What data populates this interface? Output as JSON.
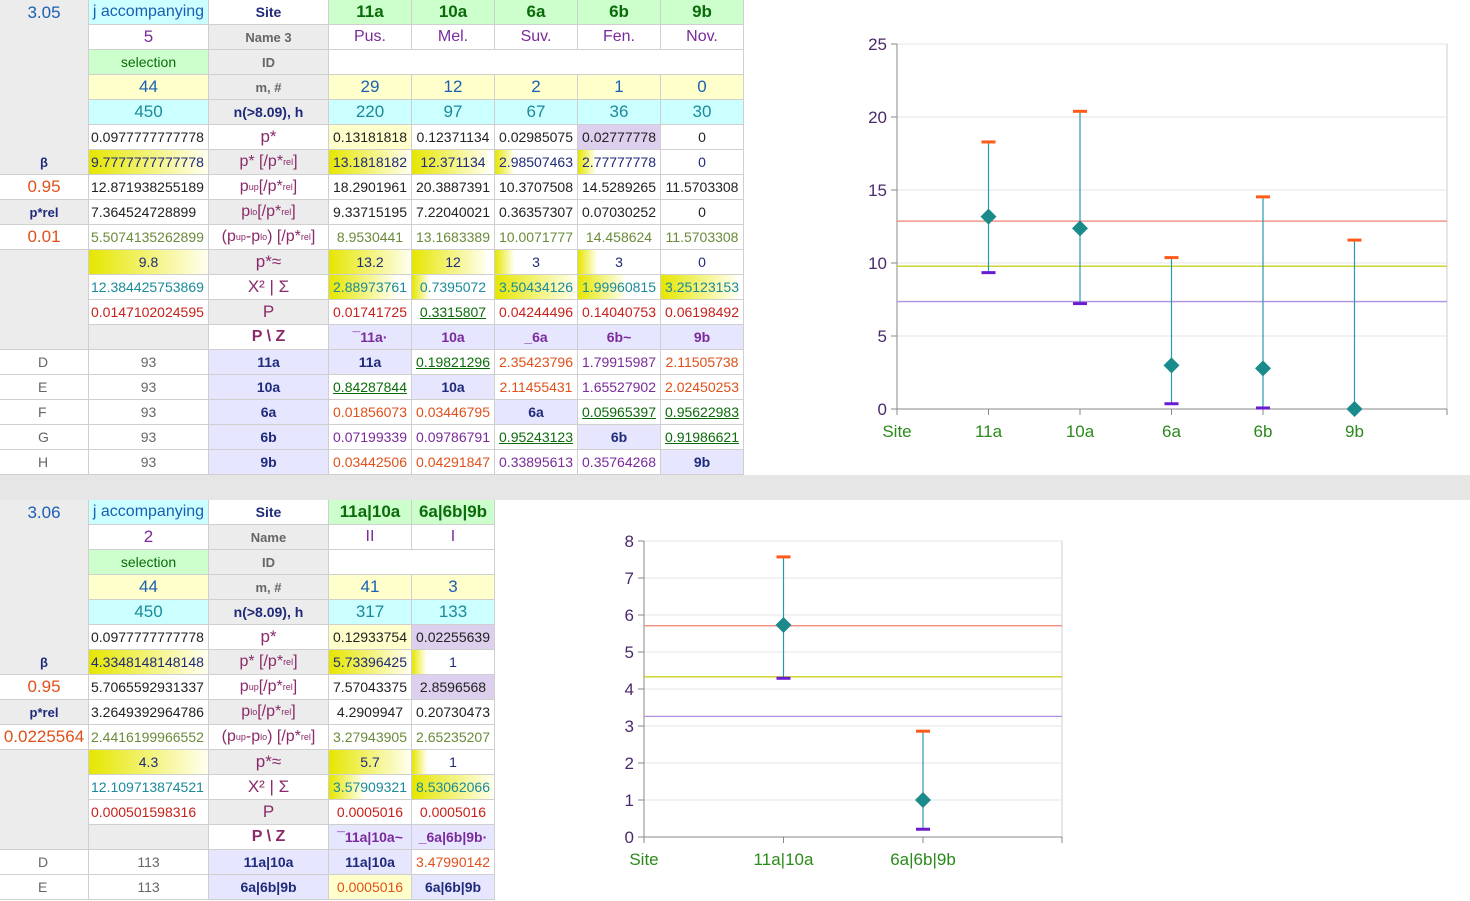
{
  "sheet1": {
    "section_id": "3.05",
    "hdr_label": "j accompanying",
    "hdr_site": "Site",
    "hdr_name": "Name 3",
    "hdr_id": "ID",
    "hdr_m": "m, #",
    "hdr_n": "n(>8.09), h",
    "selection_label": "selection",
    "count": "5",
    "m_total": "44",
    "n_total": "450",
    "sites": [
      "11a",
      "10a",
      "6a",
      "6b",
      "9b"
    ],
    "names": [
      "Pus.",
      "Mel.",
      "Suv.",
      "Fen.",
      "Nov."
    ],
    "m_vals": [
      "29",
      "12",
      "2",
      "1",
      "0"
    ],
    "n_vals": [
      "220",
      "97",
      "67",
      "36",
      "30"
    ],
    "left_labels": [
      "β",
      "0.95",
      "p*rel",
      "0.01"
    ],
    "rows": [
      {
        "label": "p*",
        "left": "0.0977777777778",
        "vals": [
          "0.13181818",
          "0.12371134",
          "0.02985075",
          "0.02777778",
          "0"
        ]
      },
      {
        "label": "p* [/p*rel]",
        "left": "9.7777777777778",
        "vals": [
          "13.1818182",
          "12.371134",
          "2.98507463",
          "2.77777778",
          "0"
        ]
      },
      {
        "label": "pup [/p*rel]",
        "left": "12.871938255189",
        "vals": [
          "18.2901961",
          "20.3887391",
          "10.3707508",
          "14.5289265",
          "11.5703308"
        ]
      },
      {
        "label": "plo [/p*rel]",
        "left": "7.364524728899",
        "vals": [
          "9.33715195",
          "7.22040021",
          "0.36357307",
          "0.07030252",
          "0"
        ]
      },
      {
        "label": "(pup-plo) [/p*rel]",
        "left": "5.5074135262899",
        "vals": [
          "8.9530441",
          "13.1683389",
          "10.0071777",
          "14.458624",
          "11.5703308"
        ]
      },
      {
        "label": "p*≈",
        "left": "9.8",
        "vals": [
          "13.2",
          "12",
          "3",
          "3",
          "0"
        ]
      },
      {
        "label": "X² | Σ",
        "left": "12.384425753869",
        "vals": [
          "2.88973761",
          "0.7395072",
          "3.50434126",
          "1.99960815",
          "3.25123153"
        ]
      },
      {
        "label": "P",
        "left": "0.0147102024595",
        "vals": [
          "0.01741725",
          "0.3315807",
          "0.04244496",
          "0.14040753",
          "0.06198492"
        ]
      },
      {
        "label": "P \\ Z",
        "left": "",
        "vals": [
          "¯11a·",
          "10a",
          "_6a",
          "6b~",
          "9b"
        ]
      }
    ],
    "matrix_rows": [
      {
        "row": "D",
        "n": "93",
        "site": "11a",
        "vals": [
          "11a",
          "0.19821296",
          "2.35423796",
          "1.79915987",
          "2.11505738"
        ]
      },
      {
        "row": "E",
        "n": "93",
        "site": "10a",
        "vals": [
          "0.84287844",
          "10a",
          "2.11455431",
          "1.65527902",
          "2.02450253"
        ]
      },
      {
        "row": "F",
        "n": "93",
        "site": "6a",
        "vals": [
          "0.01856073",
          "0.03446795",
          "6a",
          "0.05965397",
          "0.95622983"
        ]
      },
      {
        "row": "G",
        "n": "93",
        "site": "6b",
        "vals": [
          "0.07199339",
          "0.09786791",
          "0.95243123",
          "6b",
          "0.91986621"
        ]
      },
      {
        "row": "H",
        "n": "93",
        "site": "9b",
        "vals": [
          "0.03442506",
          "0.04291847",
          "0.33895613",
          "0.35764268",
          "9b"
        ]
      }
    ]
  },
  "sheet2": {
    "section_id": "3.06",
    "hdr_label": "j accompanying",
    "hdr_site": "Site",
    "hdr_name": "Name",
    "hdr_id": "ID",
    "hdr_m": "m, #",
    "hdr_n": "n(>8.09), h",
    "selection_label": "selection",
    "count": "2",
    "m_total": "44",
    "n_total": "450",
    "sites": [
      "11a|10a",
      "6a|6b|9b"
    ],
    "names": [
      "II",
      "I"
    ],
    "m_vals": [
      "41",
      "3"
    ],
    "n_vals": [
      "317",
      "133"
    ],
    "left_labels": [
      "β",
      "0.95",
      "p*rel",
      "0.0225564"
    ],
    "rows": [
      {
        "label": "p*",
        "left": "0.0977777777778",
        "vals": [
          "0.12933754",
          "0.02255639"
        ]
      },
      {
        "label": "p* [/p*rel]",
        "left": "4.3348148148148",
        "vals": [
          "5.73396425",
          "1"
        ]
      },
      {
        "label": "pup [/p*rel]",
        "left": "5.7065592931337",
        "vals": [
          "7.57043375",
          "2.8596568"
        ]
      },
      {
        "label": "plo [/p*rel]",
        "left": "3.2649392964786",
        "vals": [
          "4.2909947",
          "0.20730473"
        ]
      },
      {
        "label": "(pup-plo) [/p*rel]",
        "left": "2.4416199966552",
        "vals": [
          "3.27943905",
          "2.65235207"
        ]
      },
      {
        "label": "p*≈",
        "left": "4.3",
        "vals": [
          "5.7",
          "1"
        ]
      },
      {
        "label": "X² | Σ",
        "left": "12.109713874521",
        "vals": [
          "3.57909321",
          "8.53062066"
        ]
      },
      {
        "label": "P",
        "left": "0.000501598316",
        "vals": [
          "0.0005016",
          "0.0005016"
        ]
      },
      {
        "label": "P \\ Z",
        "left": "",
        "vals": [
          "¯11a|10a~",
          "_6a|6b|9b·"
        ]
      }
    ],
    "matrix_rows": [
      {
        "row": "D",
        "n": "113",
        "site": "11a|10a",
        "vals": [
          "11a|10a",
          "3.47990142"
        ]
      },
      {
        "row": "E",
        "n": "113",
        "site": "6a|6b|9b",
        "vals": [
          "0.0005016",
          "6a|6b|9b"
        ]
      }
    ]
  },
  "chart_data": [
    {
      "type": "scatter",
      "categories": [
        "11a",
        "10a",
        "6a",
        "6b",
        "9b"
      ],
      "x_axis_first_label": "Site",
      "series": [
        {
          "values": [
            13.18,
            12.37,
            2.99,
            2.78,
            0
          ]
        },
        {
          "values": [
            18.29,
            20.39,
            10.37,
            14.53,
            11.57
          ]
        },
        {
          "values": [
            9.34,
            7.22,
            0.36,
            0.07,
            0
          ]
        }
      ],
      "reference_lines": [
        12.87,
        9.78,
        7.36
      ],
      "ylim": [
        0,
        25
      ],
      "yticks": [
        "0",
        "5",
        "10",
        "15",
        "20",
        "25"
      ],
      "grid": true,
      "colors": {
        "point": "#1a8a8a",
        "upper": "#ff5a1a",
        "lower": "#6a1ad0",
        "line_red": "#f08070",
        "line_yellow": "#c8d020",
        "line_purple": "#b090e0"
      }
    },
    {
      "type": "scatter",
      "categories": [
        "11a|10a",
        "6a|6b|9b"
      ],
      "x_axis_first_label": "Site",
      "series": [
        {
          "values": [
            5.73,
            1
          ]
        },
        {
          "values": [
            7.57,
            2.86
          ]
        },
        {
          "values": [
            4.29,
            0.21
          ]
        }
      ],
      "reference_lines": [
        5.71,
        4.33,
        3.26
      ],
      "ylim": [
        0,
        8
      ],
      "yticks": [
        "0",
        "1",
        "2",
        "3",
        "4",
        "5",
        "6",
        "7",
        "8"
      ],
      "grid": true,
      "colors": {
        "point": "#1a8a8a",
        "upper": "#ff5a1a",
        "lower": "#6a1ad0",
        "line_red": "#f08070",
        "line_yellow": "#c8d020",
        "line_purple": "#b090e0"
      }
    }
  ]
}
